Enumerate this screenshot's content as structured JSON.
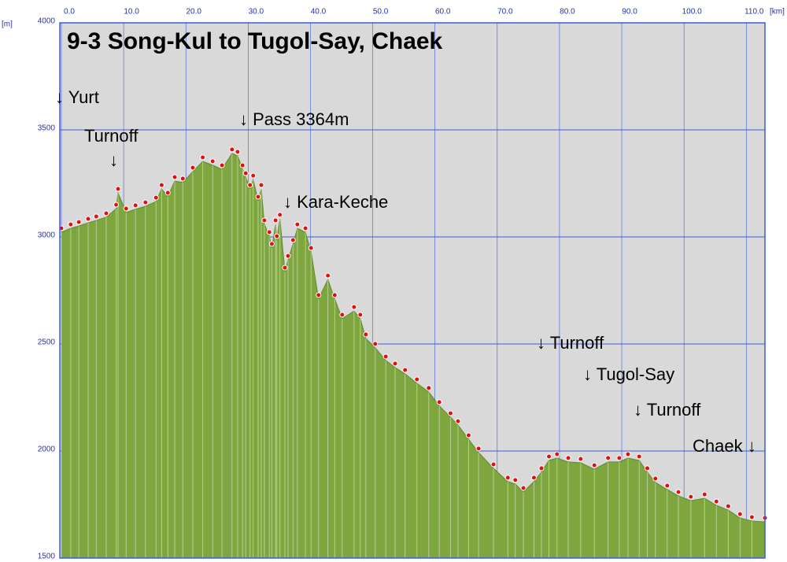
{
  "chart_data": {
    "type": "area",
    "title": "9-3 Song-Kul to Tugol-Say, Chaek",
    "y_unit_label": "[m]",
    "x_unit_label": "[km]",
    "x": [
      0,
      1.5,
      2.8,
      4.3,
      5.6,
      7.2,
      8.8,
      9.1,
      10.4,
      11.9,
      13.5,
      15.2,
      16.1,
      17.1,
      18.2,
      19.5,
      21.1,
      22.7,
      24.3,
      25.8,
      27.4,
      28.3,
      29.1,
      29.6,
      30.3,
      30.8,
      31.6,
      32.1,
      32.6,
      33.4,
      33.8,
      34.4,
      34.6,
      35.1,
      35.9,
      36.4,
      37.2,
      37.9,
      39.2,
      40.1,
      41.3,
      42.8,
      43.9,
      45.1,
      47.0,
      48.0,
      48.9,
      50.4,
      52.1,
      53.6,
      55.2,
      57.1,
      59.0,
      60.7,
      62.5,
      63.7,
      65.4,
      67.0,
      69.4,
      71.7,
      72.9,
      74.2,
      75.9,
      77.1,
      78.3,
      79.6,
      81.4,
      83.4,
      85.6,
      87.8,
      89.6,
      91.0,
      92.8,
      94.1,
      95.4,
      97.3,
      99.1,
      101.1,
      103.3,
      105.2,
      107.1,
      109.0,
      110.9,
      113.0
    ],
    "values": [
      3022,
      3040,
      3051,
      3066,
      3077,
      3092,
      3132,
      3206,
      3114,
      3129,
      3143,
      3165,
      3224,
      3188,
      3261,
      3254,
      3305,
      3353,
      3335,
      3316,
      3390,
      3379,
      3316,
      3279,
      3224,
      3268,
      3169,
      3224,
      3059,
      3004,
      2949,
      3059,
      2985,
      3085,
      2838,
      2893,
      2967,
      3040,
      3022,
      2930,
      2710,
      2801,
      2710,
      2618,
      2654,
      2618,
      2526,
      2482,
      2423,
      2390,
      2360,
      2316,
      2276,
      2210,
      2158,
      2121,
      2055,
      1993,
      1919,
      1857,
      1846,
      1809,
      1857,
      1901,
      1956,
      1967,
      1949,
      1945,
      1915,
      1949,
      1949,
      1967,
      1956,
      1901,
      1853,
      1820,
      1790,
      1768,
      1779,
      1746,
      1724,
      1687,
      1673,
      1669
    ],
    "color": "#7ea63e",
    "marker_color": "#e01010",
    "grid_color": "#3b5bdb",
    "background": "#d9d9d9",
    "xlim": [
      0,
      113
    ],
    "ylim": [
      1500,
      4000
    ],
    "xticks": [
      {
        "value": 0,
        "label": "0.0"
      },
      {
        "value": 10,
        "label": "10.0"
      },
      {
        "value": 20,
        "label": "20.0"
      },
      {
        "value": 30,
        "label": "30.0"
      },
      {
        "value": 40,
        "label": "40.0"
      },
      {
        "value": 50,
        "label": "50.0"
      },
      {
        "value": 60,
        "label": "60.0"
      },
      {
        "value": 70,
        "label": "70.0"
      },
      {
        "value": 80,
        "label": "80.0"
      },
      {
        "value": 90,
        "label": "90.0"
      },
      {
        "value": 100,
        "label": "100.0"
      },
      {
        "value": 110,
        "label": "110.0"
      }
    ],
    "yticks": [
      1500,
      2000,
      2500,
      3000,
      3500,
      4000
    ],
    "grid": true,
    "annotations": [
      "↓ Yurt",
      "Turnoff",
      "↓",
      "↓ Pass 3364m",
      "↓ Kara-Keche",
      "↓ Turnoff",
      "↓ Tugol-Say",
      "↓ Turnoff",
      "Chaek ↓"
    ]
  }
}
